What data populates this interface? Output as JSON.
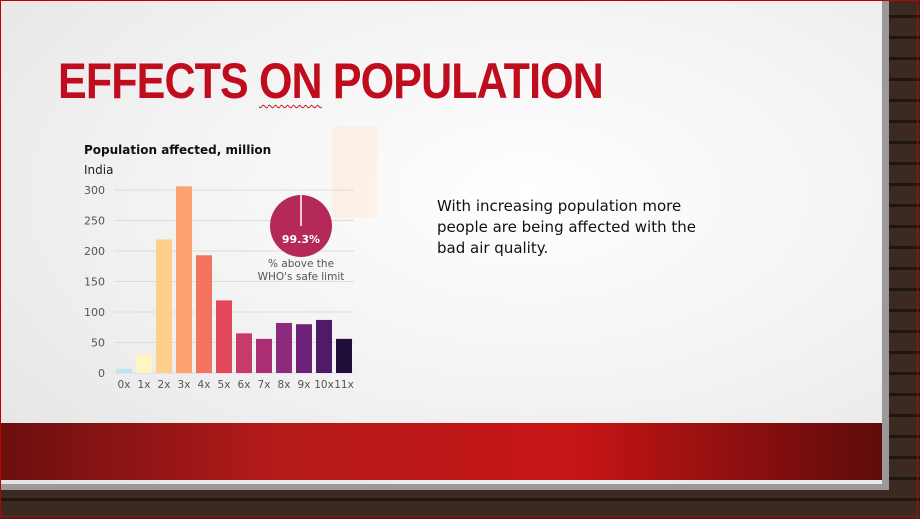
{
  "slide": {
    "title_part1": "EFFECTS ",
    "title_part2": "ON",
    "title_part3": " POPULATION",
    "body": "With increasing population more people are being affected with the bad air quality."
  },
  "colors": {
    "title": "#c00d1e",
    "band": "#c71515"
  },
  "chart_data": {
    "type": "bar",
    "title": "Population affected, million",
    "subtitle": "India",
    "categories": [
      "0x",
      "1x",
      "2x",
      "3x",
      "4x",
      "5x",
      "6x",
      "7x",
      "8x",
      "9x",
      "10x",
      "11x"
    ],
    "values": [
      7,
      30,
      219,
      306,
      193,
      119,
      65,
      56,
      82,
      80,
      87,
      56
    ],
    "bar_colors": [
      "#bfe3f5",
      "#fff5c0",
      "#ffd08a",
      "#fca36f",
      "#f4735e",
      "#e2475a",
      "#c93a6c",
      "#a92f72",
      "#8c2a7d",
      "#6d2178",
      "#4f1a68",
      "#1f0e3a"
    ],
    "ylim": [
      0,
      300
    ],
    "yticks": [
      0,
      50,
      100,
      150,
      200,
      250,
      300
    ],
    "grid": true,
    "annotation": {
      "value": "99.3%",
      "caption_line1": "% above the",
      "caption_line2": "WHO's safe limit",
      "color": "#b5285a"
    }
  }
}
